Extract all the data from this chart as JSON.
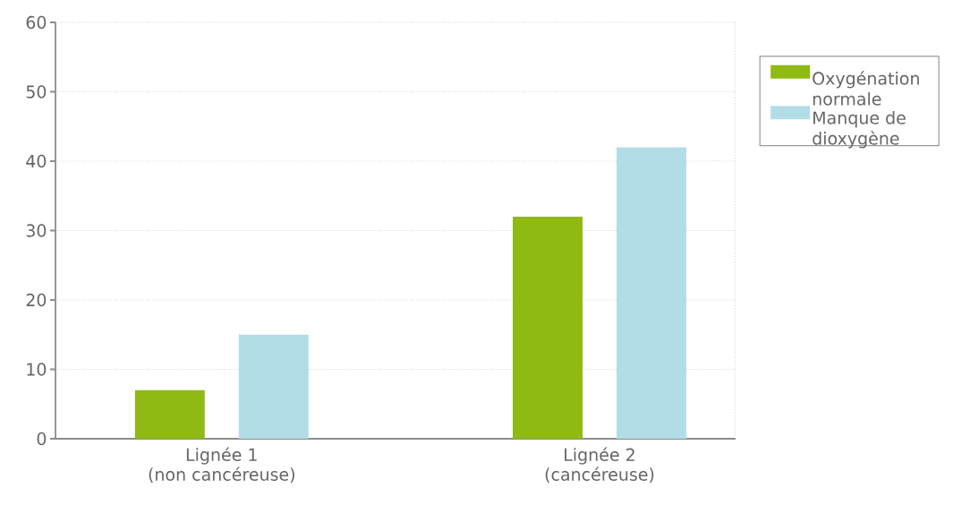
{
  "chart_data": {
    "type": "bar",
    "categories": [
      "Lignée 1\n(non cancéreuse)",
      "Lignée 2\n(cancéreuse)"
    ],
    "series": [
      {
        "name": "Oxygénation normale",
        "color": "#8fba14",
        "values": [
          7,
          32
        ]
      },
      {
        "name": "Manque de dioxygène",
        "color": "#b3dde6",
        "values": [
          15,
          42
        ]
      }
    ],
    "ylim": [
      0,
      60
    ],
    "yticks": [
      0,
      10,
      20,
      30,
      40,
      50,
      60
    ],
    "grid": "y",
    "legend": "top right"
  }
}
